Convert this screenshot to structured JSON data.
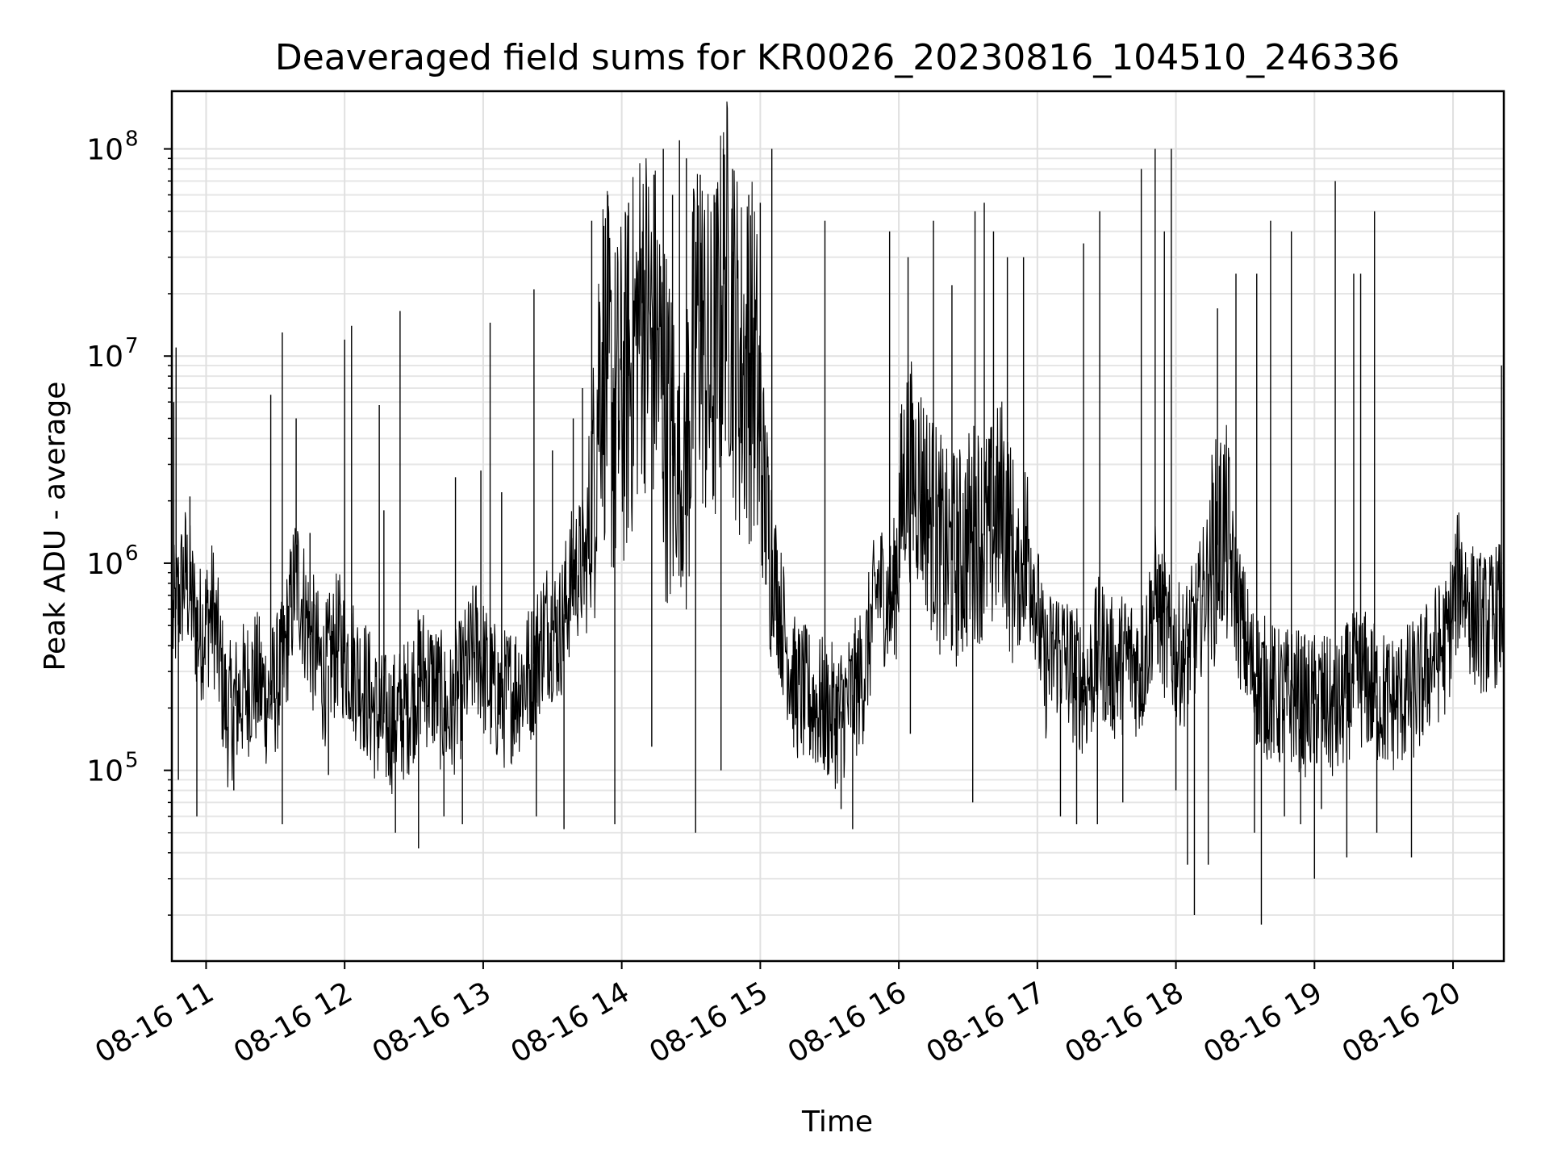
{
  "chart_data": {
    "type": "line",
    "title": "Deaveraged field sums for KR0026_20230816_104510_246336",
    "xlabel": "Time",
    "ylabel": "Peak ADU - average",
    "y_scale": "log",
    "ylim": [
      12000,
      190000000
    ],
    "xlim": [
      "2023-08-16T10:45:10",
      "2023-08-16T20:22:00"
    ],
    "grid": true,
    "minor_grid": true,
    "legend": "none",
    "line_color": "#000000",
    "y_ticks": [
      {
        "mantissa": "10",
        "exponent": "5",
        "value": 100000
      },
      {
        "mantissa": "10",
        "exponent": "6",
        "value": 1000000
      },
      {
        "mantissa": "10",
        "exponent": "7",
        "value": 10000000
      },
      {
        "mantissa": "10",
        "exponent": "8",
        "value": 100000000
      }
    ],
    "x_ticks": [
      {
        "label": "08-16 11",
        "time": "2023-08-16T11:00:00"
      },
      {
        "label": "08-16 12",
        "time": "2023-08-16T12:00:00"
      },
      {
        "label": "08-16 13",
        "time": "2023-08-16T13:00:00"
      },
      {
        "label": "08-16 14",
        "time": "2023-08-16T14:00:00"
      },
      {
        "label": "08-16 15",
        "time": "2023-08-16T15:00:00"
      },
      {
        "label": "08-16 16",
        "time": "2023-08-16T16:00:00"
      },
      {
        "label": "08-16 17",
        "time": "2023-08-16T17:00:00"
      },
      {
        "label": "08-16 18",
        "time": "2023-08-16T18:00:00"
      },
      {
        "label": "08-16 19",
        "time": "2023-08-16T19:00:00"
      },
      {
        "label": "08-16 20",
        "time": "2023-08-16T20:00:00"
      }
    ],
    "series": [
      {
        "x": [
          "2023-08-16T10:45:10",
          "2023-08-16T10:51:00",
          "2023-08-16T10:57:00",
          "2023-08-16T11:03:00",
          "2023-08-16T11:09:00",
          "2023-08-16T11:15:00",
          "2023-08-16T11:21:00",
          "2023-08-16T11:27:00",
          "2023-08-16T11:33:00",
          "2023-08-16T11:39:00",
          "2023-08-16T11:45:00",
          "2023-08-16T11:51:00",
          "2023-08-16T11:57:00",
          "2023-08-16T12:03:00",
          "2023-08-16T12:09:00",
          "2023-08-16T12:15:00",
          "2023-08-16T12:21:00",
          "2023-08-16T12:27:00",
          "2023-08-16T12:33:00",
          "2023-08-16T12:39:00",
          "2023-08-16T12:45:00",
          "2023-08-16T12:51:00",
          "2023-08-16T12:57:00",
          "2023-08-16T13:03:00",
          "2023-08-16T13:09:00",
          "2023-08-16T13:15:00",
          "2023-08-16T13:21:00",
          "2023-08-16T13:27:00",
          "2023-08-16T13:33:00",
          "2023-08-16T13:39:00",
          "2023-08-16T13:45:00",
          "2023-08-16T13:51:00",
          "2023-08-16T13:57:00",
          "2023-08-16T14:03:00",
          "2023-08-16T14:09:00",
          "2023-08-16T14:15:00",
          "2023-08-16T14:21:00",
          "2023-08-16T14:27:00",
          "2023-08-16T14:33:00",
          "2023-08-16T14:39:00",
          "2023-08-16T14:45:00",
          "2023-08-16T14:51:00",
          "2023-08-16T14:57:00",
          "2023-08-16T15:03:00",
          "2023-08-16T15:09:00",
          "2023-08-16T15:15:00",
          "2023-08-16T15:21:00",
          "2023-08-16T15:27:00",
          "2023-08-16T15:33:00",
          "2023-08-16T15:39:00",
          "2023-08-16T15:45:00",
          "2023-08-16T15:51:00",
          "2023-08-16T15:57:00",
          "2023-08-16T16:03:00",
          "2023-08-16T16:09:00",
          "2023-08-16T16:15:00",
          "2023-08-16T16:21:00",
          "2023-08-16T16:27:00",
          "2023-08-16T16:33:00",
          "2023-08-16T16:39:00",
          "2023-08-16T16:45:00",
          "2023-08-16T16:51:00",
          "2023-08-16T16:57:00",
          "2023-08-16T17:03:00",
          "2023-08-16T17:09:00",
          "2023-08-16T17:15:00",
          "2023-08-16T17:21:00",
          "2023-08-16T17:27:00",
          "2023-08-16T17:33:00",
          "2023-08-16T17:39:00",
          "2023-08-16T17:45:00",
          "2023-08-16T17:51:00",
          "2023-08-16T17:57:00",
          "2023-08-16T18:03:00",
          "2023-08-16T18:09:00",
          "2023-08-16T18:15:00",
          "2023-08-16T18:21:00",
          "2023-08-16T18:27:00",
          "2023-08-16T18:33:00",
          "2023-08-16T18:39:00",
          "2023-08-16T18:45:00",
          "2023-08-16T18:51:00",
          "2023-08-16T18:57:00",
          "2023-08-16T19:03:00",
          "2023-08-16T19:09:00",
          "2023-08-16T19:15:00",
          "2023-08-16T19:21:00",
          "2023-08-16T19:27:00",
          "2023-08-16T19:33:00",
          "2023-08-16T19:39:00",
          "2023-08-16T19:45:00",
          "2023-08-16T19:51:00",
          "2023-08-16T19:57:00",
          "2023-08-16T20:03:00",
          "2023-08-16T20:09:00",
          "2023-08-16T20:15:00",
          "2023-08-16T20:21:00"
        ],
        "y": [
          500000,
          900000,
          450000,
          600000,
          180000,
          230000,
          280000,
          220000,
          300000,
          900000,
          450000,
          280000,
          420000,
          330000,
          250000,
          170000,
          170000,
          200000,
          300000,
          250000,
          180000,
          260000,
          400000,
          250000,
          220000,
          260000,
          300000,
          500000,
          450000,
          900000,
          1000000,
          12000000,
          5000000,
          8000000,
          18000000,
          12000000,
          3500000,
          2500000,
          17000000,
          7000000,
          28000000,
          9000000,
          10000000,
          1500000,
          550000,
          250000,
          220000,
          200000,
          180000,
          220000,
          300000,
          800000,
          600000,
          3000000,
          2500000,
          1500000,
          1000000,
          1100000,
          1500000,
          1300000,
          2000000,
          800000,
          1200000,
          300000,
          400000,
          300000,
          250000,
          400000,
          300000,
          350000,
          300000,
          700000,
          400000,
          350000,
          500000,
          1000000,
          1500000,
          600000,
          300000,
          250000,
          220000,
          230000,
          200000,
          220000,
          180000,
          250000,
          280000,
          230000,
          210000,
          230000,
          250000,
          350000,
          400000,
          900000,
          550000,
          500000,
          600000
        ]
      },
      {
        "x": [
          "2023-08-16T10:46:00",
          "2023-08-16T10:47:00",
          "2023-08-16T10:51:00",
          "2023-08-16T10:53:00",
          "2023-08-16T11:28:00",
          "2023-08-16T11:33:00",
          "2023-08-16T11:39:00",
          "2023-08-16T11:45:00",
          "2023-08-16T12:00:00",
          "2023-08-16T12:03:00",
          "2023-08-16T12:15:00",
          "2023-08-16T12:17:00",
          "2023-08-16T12:24:00",
          "2023-08-16T12:48:00",
          "2023-08-16T12:59:00",
          "2023-08-16T13:03:00",
          "2023-08-16T13:08:00",
          "2023-08-16T13:22:00",
          "2023-08-16T13:30:00",
          "2023-08-16T13:39:00",
          "2023-08-16T13:43:00",
          "2023-08-16T13:47:00",
          "2023-08-16T13:54:00",
          "2023-08-16T14:03:00",
          "2023-08-16T14:09:00",
          "2023-08-16T14:14:00",
          "2023-08-16T14:18:00",
          "2023-08-16T14:22:00",
          "2023-08-16T14:25:00",
          "2023-08-16T14:28:00",
          "2023-08-16T14:34:00",
          "2023-08-16T14:40:00",
          "2023-08-16T14:44:00",
          "2023-08-16T14:48:00",
          "2023-08-16T14:55:00",
          "2023-08-16T15:00:00",
          "2023-08-16T15:05:00",
          "2023-08-16T15:28:00",
          "2023-08-16T15:56:00",
          "2023-08-16T16:04:00",
          "2023-08-16T16:15:00",
          "2023-08-16T16:23:00",
          "2023-08-16T16:33:00",
          "2023-08-16T16:37:00",
          "2023-08-16T16:41:00",
          "2023-08-16T16:47:00",
          "2023-08-16T16:54:00",
          "2023-08-16T17:20:00",
          "2023-08-16T17:27:00",
          "2023-08-16T17:45:00",
          "2023-08-16T17:51:00",
          "2023-08-16T17:55:00",
          "2023-08-16T17:58:00",
          "2023-08-16T18:18:00",
          "2023-08-16T18:26:00",
          "2023-08-16T18:35:00",
          "2023-08-16T18:41:00",
          "2023-08-16T18:50:00",
          "2023-08-16T19:09:00",
          "2023-08-16T19:17:00",
          "2023-08-16T19:20:00",
          "2023-08-16T19:26:00",
          "2023-08-16T20:21:00"
        ],
        "y": [
          6000000,
          11000000,
          1300000,
          2100000,
          6500000,
          13000000,
          5000000,
          1400000,
          12000000,
          14000000,
          5800000,
          1800000,
          16500000,
          2600000,
          2800000,
          14500000,
          2200000,
          21000000,
          3500000,
          5000000,
          7000000,
          45000000,
          60000000,
          55000000,
          40000000,
          75000000,
          100000000,
          60000000,
          110000000,
          90000000,
          75000000,
          60000000,
          100000000,
          80000000,
          60000000,
          55000000,
          100000000,
          45000000,
          40000000,
          30000000,
          45000000,
          22000000,
          50000000,
          55000000,
          40000000,
          30000000,
          30000000,
          35000000,
          50000000,
          80000000,
          100000000,
          40000000,
          100000000,
          17000000,
          25000000,
          25000000,
          45000000,
          40000000,
          70000000,
          25000000,
          25000000,
          50000000,
          9000000
        ]
      },
      {
        "x": [
          "2023-08-16T10:48:00",
          "2023-08-16T10:56:00",
          "2023-08-16T11:12:00",
          "2023-08-16T11:33:00",
          "2023-08-16T11:53:00",
          "2023-08-16T12:22:00",
          "2023-08-16T12:32:00",
          "2023-08-16T12:43:00",
          "2023-08-16T12:51:00",
          "2023-08-16T13:23:00",
          "2023-08-16T13:35:00",
          "2023-08-16T13:57:00",
          "2023-08-16T14:13:00",
          "2023-08-16T14:32:00",
          "2023-08-16T14:43:00",
          "2023-08-16T15:35:00",
          "2023-08-16T15:40:00",
          "2023-08-16T16:05:00",
          "2023-08-16T16:32:00",
          "2023-08-16T17:10:00",
          "2023-08-16T17:17:00",
          "2023-08-16T17:26:00",
          "2023-08-16T17:37:00",
          "2023-08-16T18:00:00",
          "2023-08-16T18:05:00",
          "2023-08-16T18:08:00",
          "2023-08-16T18:14:00",
          "2023-08-16T18:34:00",
          "2023-08-16T18:37:00",
          "2023-08-16T18:47:00",
          "2023-08-16T18:54:00",
          "2023-08-16T19:00:00",
          "2023-08-16T19:03:00",
          "2023-08-16T19:14:00",
          "2023-08-16T19:27:00",
          "2023-08-16T19:42:00"
        ],
        "y": [
          90000,
          60000,
          80000,
          55000,
          95000,
          50000,
          42000,
          60000,
          55000,
          60000,
          52000,
          55000,
          130000,
          50000,
          100000,
          65000,
          52000,
          150000,
          70000,
          60000,
          55000,
          55000,
          70000,
          80000,
          35000,
          20000,
          35000,
          50000,
          18000,
          60000,
          55000,
          30000,
          65000,
          38000,
          50000,
          38000
        ]
      }
    ]
  }
}
